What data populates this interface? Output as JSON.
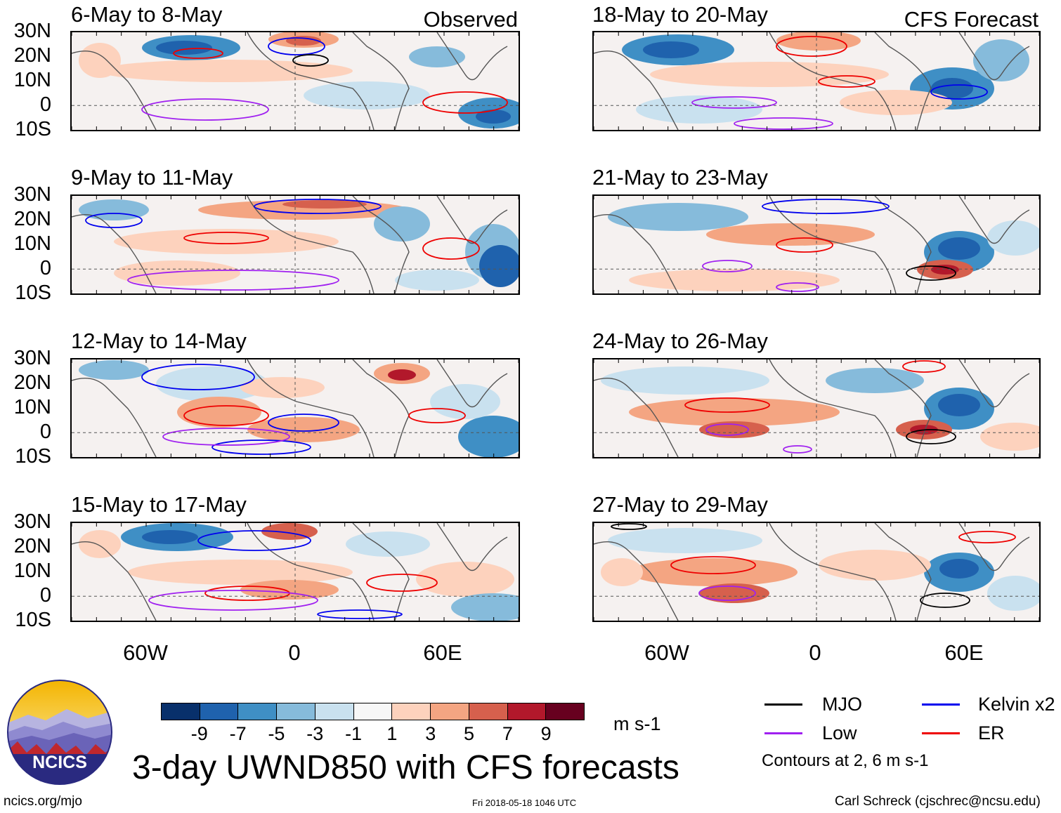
{
  "panels": {
    "observed": [
      {
        "title": "6-May to 8-May",
        "tag": "Observed"
      },
      {
        "title": "9-May to 11-May"
      },
      {
        "title": "12-May to 14-May"
      },
      {
        "title": "15-May to 17-May"
      }
    ],
    "forecast": [
      {
        "title": "18-May to 20-May",
        "tag": "CFS Forecast"
      },
      {
        "title": "21-May to 23-May"
      },
      {
        "title": "24-May to 26-May"
      },
      {
        "title": "27-May to 29-May"
      }
    ]
  },
  "axes": {
    "lat_labels": [
      "30N",
      "20N",
      "10N",
      "0",
      "10S"
    ],
    "lon_labels": [
      "60W",
      "0",
      "60E"
    ]
  },
  "colorbar": {
    "labels": [
      "-9",
      "-7",
      "-5",
      "-3",
      "-1",
      "1",
      "3",
      "5",
      "7",
      "9"
    ],
    "colors": [
      "#08306b",
      "#1f62ad",
      "#3f8fc5",
      "#86bbdb",
      "#c9e1ef",
      "#f7f7f7",
      "#fdd2bd",
      "#f4a582",
      "#d6604d",
      "#b2182b",
      "#67001f"
    ],
    "units": "m s-1"
  },
  "title": "3-day UWND850 with CFS forecasts",
  "legend": {
    "items": [
      {
        "label": "MJO",
        "color": "#000000"
      },
      {
        "label": "Kelvin x2",
        "color": "#0000ee"
      },
      {
        "label": "Low",
        "color": "#a020f0"
      },
      {
        "label": "ER",
        "color": "#ee0000"
      }
    ],
    "note": "Contours at 2, 6 m s-1"
  },
  "logo": {
    "text": "NCICS"
  },
  "footer": {
    "url": "ncics.org/mjo",
    "timestamp": "Fri 2018-05-18 1046 UTC",
    "credit": "Carl Schreck (cjschrec@ncsu.edu)"
  }
}
